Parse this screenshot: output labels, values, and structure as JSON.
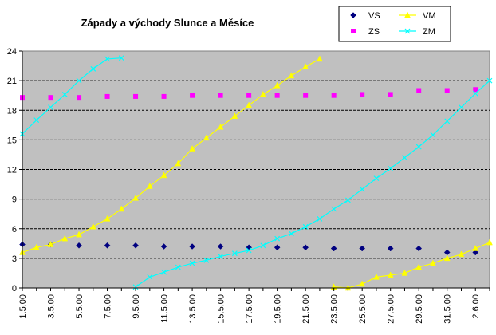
{
  "chart_data": {
    "type": "line",
    "title": "Západy a východy Slunce a Měsíce",
    "xlabel": "",
    "ylabel": "",
    "ylim": [
      0,
      24
    ],
    "yticks": [
      "0",
      "3",
      "6",
      "9",
      "12",
      "15",
      "18",
      "21",
      "24"
    ],
    "xticks": [
      "1.5.00",
      "3.5.00",
      "5.5.00",
      "7.5.00",
      "9.5.00",
      "11.5.00",
      "13.5.00",
      "15.5.00",
      "17.5.00",
      "19.5.00",
      "21.5.00",
      "23.5.00",
      "25.5.00",
      "27.5.00",
      "29.5.00",
      "31.5.00",
      "2.6.00"
    ],
    "x_days": [
      1,
      3,
      5,
      7,
      9,
      11,
      13,
      15,
      17,
      19,
      21,
      23,
      25,
      27,
      29,
      31,
      33
    ],
    "xlim": [
      1,
      34
    ],
    "grid": "horizontal dashed",
    "plot_background": "#c0c0c0",
    "legend_position": "top-right",
    "series": [
      {
        "name": "VS",
        "color": "#000080",
        "marker": "diamond",
        "line": false,
        "x": [
          1,
          3,
          5,
          7,
          9,
          11,
          13,
          15,
          17,
          19,
          21,
          23,
          25,
          27,
          29,
          31,
          33
        ],
        "y": [
          4.4,
          4.4,
          4.3,
          4.3,
          4.3,
          4.2,
          4.2,
          4.2,
          4.1,
          4.1,
          4.1,
          4.0,
          4.0,
          4.0,
          4.0,
          3.6,
          3.6
        ]
      },
      {
        "name": "ZS",
        "color": "#ff00ff",
        "marker": "square",
        "line": false,
        "x": [
          1,
          3,
          5,
          7,
          9,
          11,
          13,
          15,
          17,
          19,
          21,
          23,
          25,
          27,
          29,
          31,
          33
        ],
        "y": [
          19.3,
          19.3,
          19.3,
          19.4,
          19.4,
          19.4,
          19.5,
          19.5,
          19.5,
          19.5,
          19.5,
          19.5,
          19.6,
          19.6,
          20.0,
          20.0,
          20.1
        ]
      },
      {
        "name": "VM",
        "color": "#ffff00",
        "marker": "triangle",
        "line": true,
        "segments": [
          {
            "x": [
              1,
              2,
              3,
              4,
              5,
              6,
              7,
              8,
              9,
              10,
              11,
              12,
              13,
              14,
              15,
              16,
              17,
              18,
              19,
              20,
              21,
              22
            ],
            "y": [
              3.6,
              4.1,
              4.4,
              5.0,
              5.4,
              6.2,
              7.0,
              8.0,
              9.1,
              10.3,
              11.4,
              12.6,
              14.1,
              15.2,
              16.3,
              17.4,
              18.5,
              19.6,
              20.5,
              21.5,
              22.4,
              23.2
            ]
          },
          {
            "x": [
              23,
              24,
              25,
              26,
              27,
              28,
              29,
              30,
              31,
              32,
              33,
              34
            ],
            "y": [
              0.1,
              0.0,
              0.4,
              1.1,
              1.3,
              1.5,
              2.1,
              2.5,
              3.0,
              3.4,
              4.0,
              4.6
            ]
          }
        ]
      },
      {
        "name": "ZM",
        "color": "#00ffff",
        "marker": "x",
        "line": true,
        "segments": [
          {
            "x": [
              1,
              2,
              3,
              4,
              5,
              6,
              7,
              8
            ],
            "y": [
              15.6,
              17.0,
              18.3,
              19.6,
              21.0,
              22.2,
              23.2,
              23.3
            ]
          },
          {
            "x": [
              9,
              10,
              11,
              12,
              13,
              14,
              15,
              16,
              17,
              18,
              19,
              20,
              21,
              22,
              23,
              24,
              25,
              26,
              27,
              28,
              29,
              30,
              31,
              32,
              33,
              34
            ],
            "y": [
              0.1,
              1.1,
              1.6,
              2.1,
              2.5,
              2.8,
              3.2,
              3.5,
              3.8,
              4.3,
              5.0,
              5.5,
              6.2,
              7.0,
              8.0,
              8.9,
              10.0,
              11.1,
              12.1,
              13.2,
              14.3,
              15.5,
              16.9,
              18.3,
              19.7,
              21.0
            ]
          }
        ]
      }
    ]
  }
}
